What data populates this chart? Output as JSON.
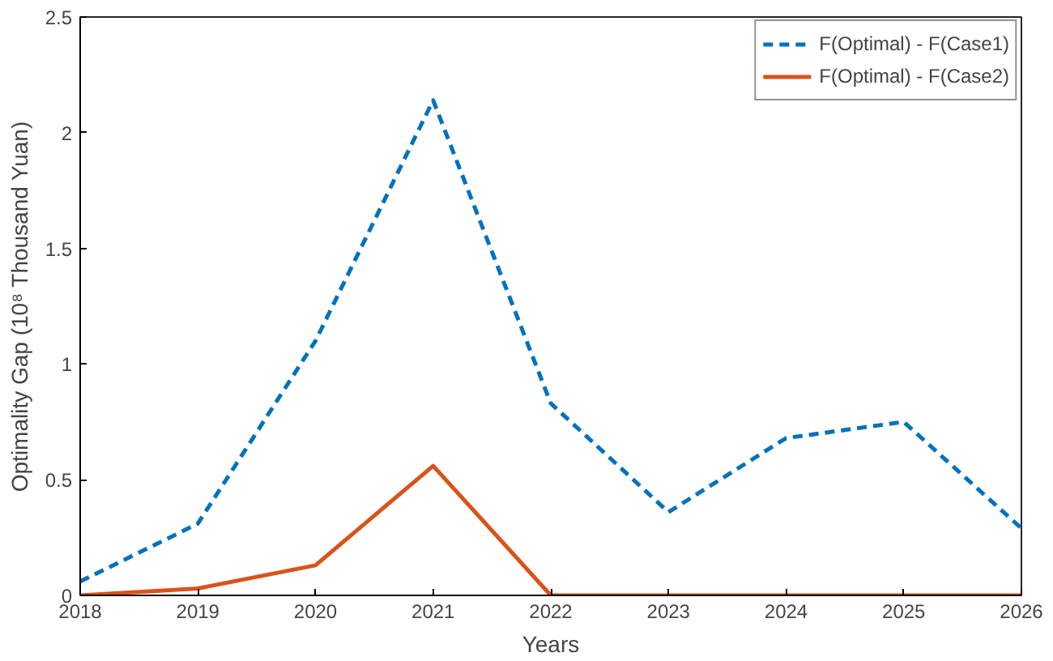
{
  "chart_data": {
    "type": "line",
    "xlabel": "Years",
    "ylabel": "Optimality Gap (10⁸ Thousand Yuan)",
    "x": [
      2018,
      2019,
      2020,
      2021,
      2022,
      2023,
      2024,
      2025,
      2026
    ],
    "series": [
      {
        "name": "F(Optimal) - F(Case1)",
        "color": "#0072bd",
        "line_style": "dashed",
        "values": [
          0.06,
          0.31,
          1.1,
          2.14,
          0.83,
          0.36,
          0.68,
          0.75,
          0.29
        ]
      },
      {
        "name": "F(Optimal) - F(Case2)",
        "color": "#d95319",
        "line_style": "solid",
        "values": [
          0,
          0.03,
          0.13,
          0.56,
          0,
          0,
          0,
          0,
          0
        ]
      }
    ],
    "xlim": [
      2018,
      2026
    ],
    "xticks": [
      2018,
      2019,
      2020,
      2021,
      2022,
      2023,
      2024,
      2025,
      2026
    ],
    "ylim": [
      0,
      2.5
    ],
    "yticks": [
      0,
      0.5,
      1,
      1.5,
      2,
      2.5
    ],
    "grid": false,
    "legend": "top right",
    "marker": "none"
  }
}
